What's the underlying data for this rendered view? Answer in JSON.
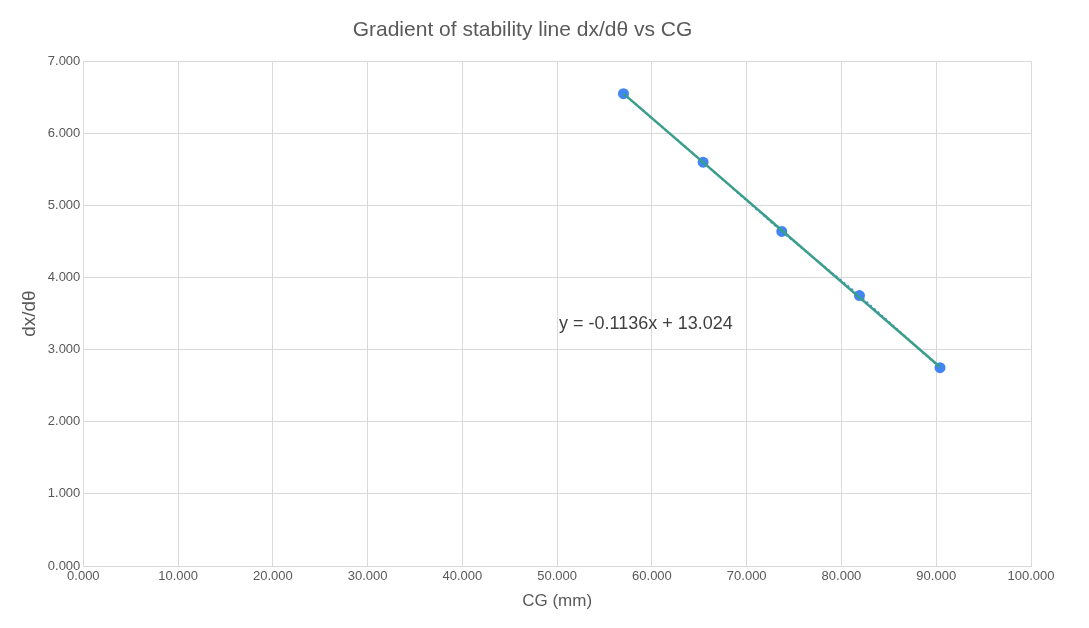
{
  "chart_data": {
    "type": "line",
    "title": "Gradient of stability line dx/dθ vs CG",
    "xlabel": "CG (mm)",
    "ylabel": "dx/dθ",
    "xlim": [
      0,
      100
    ],
    "ylim": [
      0,
      7
    ],
    "xticks": [
      {
        "value": 0,
        "label": "0.000"
      },
      {
        "value": 10,
        "label": "10.000"
      },
      {
        "value": 20,
        "label": "20.000"
      },
      {
        "value": 30,
        "label": "30.000"
      },
      {
        "value": 40,
        "label": "40.000"
      },
      {
        "value": 50,
        "label": "50.000"
      },
      {
        "value": 60,
        "label": "60.000"
      },
      {
        "value": 70,
        "label": "70.000"
      },
      {
        "value": 80,
        "label": "80.000"
      },
      {
        "value": 90,
        "label": "90.000"
      },
      {
        "value": 100,
        "label": "100.000"
      }
    ],
    "yticks": [
      {
        "value": 0,
        "label": "0.000"
      },
      {
        "value": 1,
        "label": "1.000"
      },
      {
        "value": 2,
        "label": "2.000"
      },
      {
        "value": 3,
        "label": "3.000"
      },
      {
        "value": 4,
        "label": "4.000"
      },
      {
        "value": 5,
        "label": "5.000"
      },
      {
        "value": 6,
        "label": "6.000"
      },
      {
        "value": 7,
        "label": "7.000"
      }
    ],
    "grid": true,
    "legend": false,
    "series": [
      {
        "type": "line",
        "color": "#4285f4",
        "marker": "circle",
        "line_style": "dotted",
        "x": [
          57.0,
          65.4,
          73.7,
          81.9,
          90.4
        ],
        "values": [
          6.55,
          5.6,
          4.64,
          3.75,
          2.75
        ]
      },
      {
        "type": "line",
        "color": "#3a9e8a",
        "marker": "none",
        "line_style": "solid",
        "x": [
          57.0,
          90.4
        ],
        "values": [
          6.55,
          2.76
        ]
      }
    ],
    "annotations": [
      "y = -0.1136x + 13.024"
    ]
  }
}
